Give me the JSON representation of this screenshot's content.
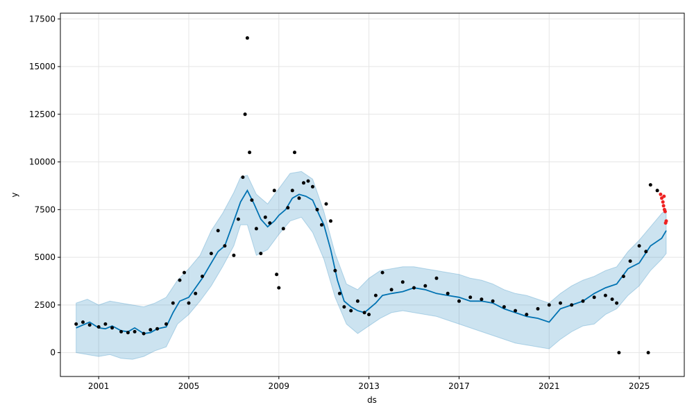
{
  "chart_data": {
    "type": "line",
    "title": "",
    "xlabel": "ds",
    "ylabel": "y",
    "xlim": [
      1999.3,
      2027.0
    ],
    "ylim": [
      -1250,
      17800
    ],
    "x_ticks": [
      2001,
      2005,
      2009,
      2013,
      2017,
      2021,
      2025
    ],
    "x_tick_labels": [
      "2001",
      "2005",
      "2009",
      "2013",
      "2017",
      "2021",
      "2025"
    ],
    "y_ticks": [
      0,
      2500,
      5000,
      7500,
      10000,
      12500,
      15000,
      17500
    ],
    "y_tick_labels": [
      "0",
      "2500",
      "5000",
      "7500",
      "10000",
      "12500",
      "15000",
      "17500"
    ],
    "grid": true,
    "colors": {
      "forecast_line": "#0072B2",
      "uncertainty_band": "#0072B2",
      "history_points": "#000000",
      "test_points": "#ee2222"
    },
    "series": [
      {
        "kind": "uncertainty_band",
        "x": [
          2000.0,
          2000.5,
          2001.0,
          2001.5,
          2002.0,
          2002.5,
          2003.0,
          2003.5,
          2004.0,
          2004.5,
          2005.0,
          2005.5,
          2006.0,
          2006.5,
          2007.0,
          2007.3,
          2007.6,
          2008.0,
          2008.5,
          2009.0,
          2009.5,
          2010.0,
          2010.5,
          2011.0,
          2011.5,
          2012.0,
          2012.5,
          2013.0,
          2013.5,
          2014.0,
          2014.5,
          2015.0,
          2015.5,
          2016.0,
          2016.5,
          2017.0,
          2017.5,
          2018.0,
          2018.5,
          2019.0,
          2019.5,
          2020.0,
          2020.5,
          2021.0,
          2021.5,
          2022.0,
          2022.5,
          2023.0,
          2023.5,
          2024.0,
          2024.5,
          2025.0,
          2025.5,
          2026.0,
          2026.2
        ],
        "upper": [
          2600,
          2800,
          2500,
          2700,
          2600,
          2500,
          2400,
          2600,
          2900,
          3800,
          4400,
          5100,
          6400,
          7300,
          8400,
          9200,
          9300,
          8300,
          7800,
          8600,
          9400,
          9500,
          9100,
          7400,
          5200,
          3600,
          3300,
          3900,
          4300,
          4400,
          4500,
          4500,
          4400,
          4300,
          4200,
          4100,
          3900,
          3800,
          3600,
          3300,
          3100,
          3000,
          2800,
          2600,
          3100,
          3500,
          3800,
          4000,
          4300,
          4500,
          5300,
          5900,
          6600,
          7300,
          7500
        ],
        "lower": [
          0,
          -100,
          -200,
          -100,
          -300,
          -350,
          -200,
          100,
          300,
          1500,
          2000,
          2700,
          3500,
          4500,
          5600,
          6700,
          6700,
          5100,
          5400,
          6200,
          6900,
          7100,
          6300,
          4900,
          2900,
          1500,
          1000,
          1400,
          1800,
          2100,
          2200,
          2100,
          2000,
          1900,
          1700,
          1500,
          1300,
          1100,
          900,
          700,
          500,
          400,
          300,
          200,
          700,
          1100,
          1400,
          1500,
          2000,
          2300,
          3000,
          3500,
          4300,
          4900,
          5200
        ]
      },
      {
        "kind": "forecast",
        "x": [
          2000.0,
          2000.3,
          2000.6,
          2001.0,
          2001.3,
          2001.6,
          2002.0,
          2002.3,
          2002.6,
          2003.0,
          2003.3,
          2003.6,
          2004.0,
          2004.3,
          2004.6,
          2005.0,
          2005.3,
          2005.6,
          2006.0,
          2006.3,
          2006.6,
          2007.0,
          2007.3,
          2007.6,
          2007.9,
          2008.2,
          2008.5,
          2008.8,
          2009.0,
          2009.3,
          2009.6,
          2009.9,
          2010.2,
          2010.5,
          2010.8,
          2011.0,
          2011.3,
          2011.6,
          2011.9,
          2012.2,
          2012.5,
          2012.8,
          2013.0,
          2013.3,
          2013.6,
          2014.0,
          2014.5,
          2015.0,
          2015.5,
          2016.0,
          2016.5,
          2017.0,
          2017.5,
          2018.0,
          2018.5,
          2019.0,
          2019.5,
          2020.0,
          2020.5,
          2021.0,
          2021.5,
          2022.0,
          2022.5,
          2023.0,
          2023.5,
          2024.0,
          2024.5,
          2025.0,
          2025.5,
          2026.0,
          2026.2
        ],
        "y": [
          1300,
          1450,
          1600,
          1300,
          1250,
          1400,
          1150,
          1100,
          1300,
          1000,
          1050,
          1250,
          1350,
          2100,
          2700,
          2900,
          3400,
          3900,
          4700,
          5300,
          5600,
          6900,
          7900,
          8500,
          7800,
          7000,
          6600,
          6900,
          7200,
          7500,
          8100,
          8300,
          8200,
          8000,
          7200,
          6700,
          5400,
          3800,
          2700,
          2400,
          2200,
          2100,
          2300,
          2600,
          3000,
          3100,
          3200,
          3400,
          3300,
          3100,
          3000,
          2900,
          2700,
          2700,
          2600,
          2300,
          2100,
          1900,
          1800,
          1600,
          2300,
          2500,
          2700,
          3100,
          3400,
          3600,
          4400,
          4700,
          5600,
          6000,
          6400
        ]
      },
      {
        "kind": "history",
        "x": [
          2000.0,
          2000.3,
          2000.6,
          2001.0,
          2001.3,
          2001.6,
          2002.0,
          2002.3,
          2002.6,
          2003.0,
          2003.3,
          2003.6,
          2004.0,
          2004.3,
          2004.6,
          2004.8,
          2005.0,
          2005.3,
          2005.6,
          2006.0,
          2006.3,
          2006.6,
          2007.0,
          2007.2,
          2007.4,
          2007.5,
          2007.6,
          2007.7,
          2007.8,
          2008.0,
          2008.2,
          2008.4,
          2008.6,
          2008.8,
          2008.9,
          2009.0,
          2009.2,
          2009.4,
          2009.6,
          2009.7,
          2009.9,
          2010.1,
          2010.3,
          2010.5,
          2010.7,
          2010.9,
          2011.1,
          2011.3,
          2011.5,
          2011.7,
          2011.9,
          2012.2,
          2012.5,
          2012.8,
          2013.0,
          2013.3,
          2013.6,
          2014.0,
          2014.5,
          2015.0,
          2015.5,
          2016.0,
          2016.5,
          2017.0,
          2017.5,
          2018.0,
          2018.5,
          2019.0,
          2019.5,
          2020.0,
          2020.5,
          2021.0,
          2021.5,
          2022.0,
          2022.5,
          2023.0,
          2023.5,
          2023.8,
          2024.0,
          2024.3,
          2024.6,
          2025.0,
          2025.3,
          2025.5,
          2025.8
        ],
        "y": [
          1500,
          1600,
          1450,
          1350,
          1500,
          1300,
          1100,
          1050,
          1100,
          1000,
          1200,
          1250,
          1500,
          2600,
          3800,
          4200,
          2600,
          3100,
          4000,
          5200,
          6400,
          5600,
          5100,
          7000,
          9200,
          12500,
          16500,
          10500,
          8000,
          6500,
          5200,
          7100,
          6800,
          8500,
          4100,
          3400,
          6500,
          7600,
          8500,
          10500,
          8100,
          8900,
          9000,
          8700,
          7500,
          6700,
          7800,
          6900,
          4300,
          3100,
          2400,
          2200,
          2700,
          2100,
          2000,
          3000,
          4200,
          3300,
          3700,
          3400,
          3500,
          3900,
          3100,
          2700,
          2900,
          2800,
          2700,
          2400,
          2200,
          2000,
          2300,
          2500,
          2600,
          2500,
          2700,
          2900,
          3000,
          2800,
          2600,
          4000,
          4800,
          5600,
          5300,
          8800,
          8500
        ]
      },
      {
        "kind": "outliers",
        "x": [
          2024.1,
          2025.4
        ],
        "y": [
          0,
          0
        ]
      },
      {
        "kind": "test",
        "x": [
          2025.95,
          2026.0,
          2026.05,
          2026.08,
          2026.1,
          2026.12,
          2026.15,
          2026.17,
          2026.2
        ],
        "y": [
          8300,
          8100,
          7900,
          7700,
          8200,
          7500,
          7400,
          6800,
          6900
        ]
      }
    ]
  }
}
